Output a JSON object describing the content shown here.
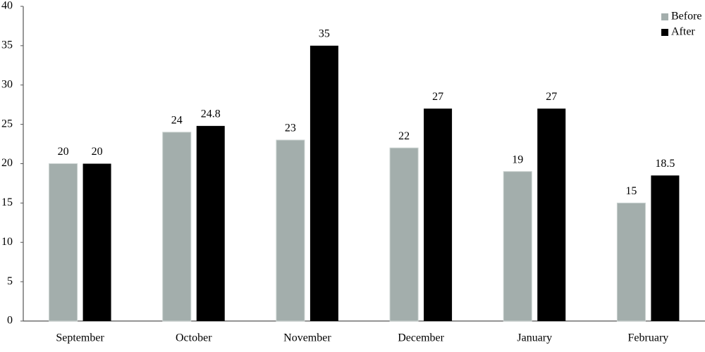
{
  "chart_data": {
    "type": "bar",
    "categories": [
      "September",
      "October",
      "November",
      "December",
      "January",
      "February"
    ],
    "series": [
      {
        "name": "Before",
        "color": "#a3aeac",
        "values": [
          20,
          24,
          23,
          22,
          19,
          15
        ]
      },
      {
        "name": "After",
        "color": "#000000",
        "values": [
          20,
          24.8,
          35,
          27,
          27,
          18.5
        ]
      }
    ],
    "ylim": [
      0,
      40
    ],
    "yticks": [
      0,
      5,
      10,
      15,
      20,
      25,
      30,
      35,
      40
    ],
    "grid": false,
    "legend": "top-right"
  }
}
